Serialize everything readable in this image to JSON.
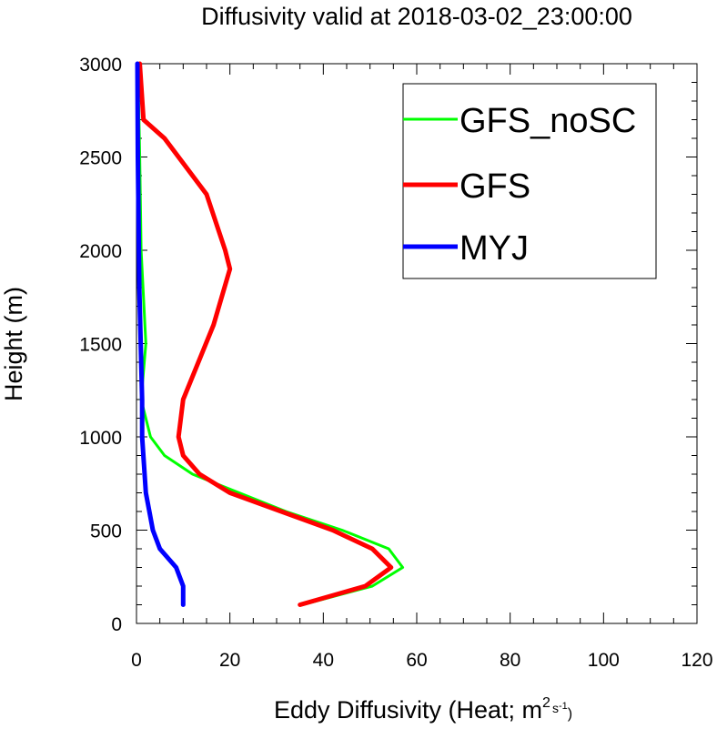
{
  "chart_data": {
    "type": "line",
    "title": "Diffusivity valid at 2018-03-02_23:00:00",
    "xlabel_main": "Eddy Diffusivity (Heat; m",
    "xlabel_sup1": "2",
    "xlabel_unit2": "s",
    "xlabel_sup2": "-1",
    "xlabel_close": ")",
    "ylabel": "Height (m)",
    "xlim": [
      0,
      120
    ],
    "ylim": [
      0,
      3000
    ],
    "xticks": [
      0,
      20,
      40,
      60,
      80,
      100,
      120
    ],
    "yticks": [
      0,
      500,
      1000,
      1500,
      2000,
      2500,
      3000
    ],
    "xtick_labels": [
      "0",
      "20",
      "40",
      "60",
      "80",
      "100",
      "120"
    ],
    "ytick_labels": [
      "0",
      "500",
      "1000",
      "1500",
      "2000",
      "2500",
      "3000"
    ],
    "grid": false,
    "legend_position": "top-right",
    "series": [
      {
        "name": "GFS_noSC",
        "color": "#00ff00",
        "points": [
          [
            35.5,
            100
          ],
          [
            50.5,
            200
          ],
          [
            57,
            300
          ],
          [
            54,
            400
          ],
          [
            44,
            500
          ],
          [
            32,
            600
          ],
          [
            22,
            700
          ],
          [
            12,
            800
          ],
          [
            6,
            900
          ],
          [
            3,
            1000
          ],
          [
            1,
            1200
          ],
          [
            2,
            1500
          ],
          [
            1,
            2000
          ],
          [
            0.7,
            2500
          ],
          [
            0.3,
            3000
          ]
        ]
      },
      {
        "name": "GFS",
        "color": "#ff0000",
        "points": [
          [
            35,
            100
          ],
          [
            49,
            200
          ],
          [
            54.5,
            300
          ],
          [
            50.5,
            400
          ],
          [
            42,
            500
          ],
          [
            31,
            600
          ],
          [
            20,
            700
          ],
          [
            13.5,
            800
          ],
          [
            10,
            900
          ],
          [
            9,
            1000
          ],
          [
            10,
            1200
          ],
          [
            16.5,
            1600
          ],
          [
            20,
            1900
          ],
          [
            19,
            2000
          ],
          [
            15,
            2300
          ],
          [
            6,
            2600
          ],
          [
            1.5,
            2700
          ],
          [
            0.7,
            3000
          ]
        ]
      },
      {
        "name": "MYJ",
        "color": "#0000ff",
        "points": [
          [
            10,
            100
          ],
          [
            10,
            200
          ],
          [
            8.5,
            300
          ],
          [
            5,
            400
          ],
          [
            3.5,
            500
          ],
          [
            2,
            700
          ],
          [
            1.2,
            1000
          ],
          [
            1.2,
            1200
          ],
          [
            0.6,
            1800
          ],
          [
            0.3,
            2500
          ],
          [
            0.2,
            3000
          ]
        ]
      }
    ]
  }
}
